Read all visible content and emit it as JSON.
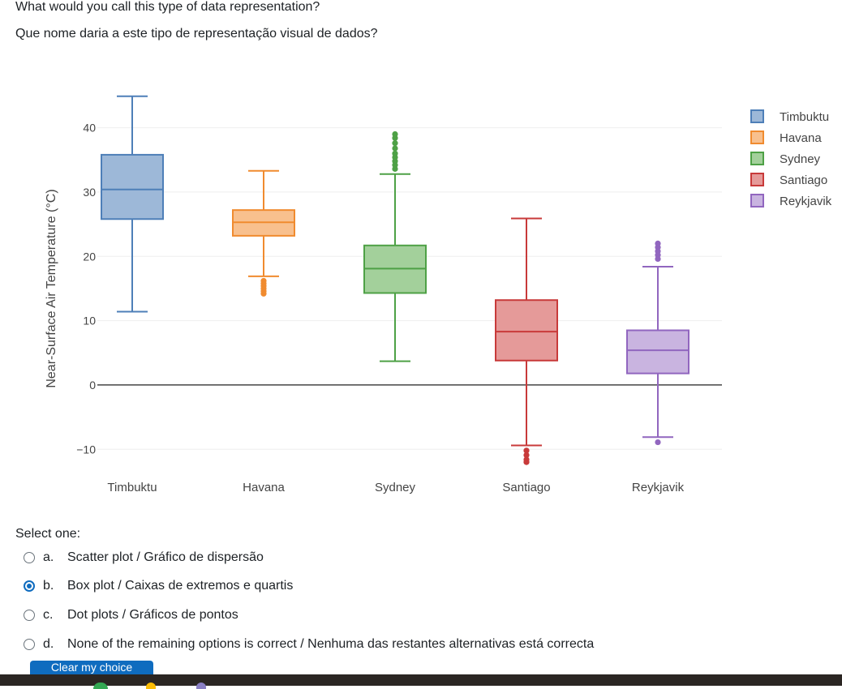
{
  "question": {
    "line_en": "What would you call this type of data representation?",
    "line_pt": "Que nome daria a este tipo de representação visual de dados?"
  },
  "chart_data": {
    "type": "box",
    "ylabel": "Near-Surface Air Temperature (°C)",
    "ylim": [
      -14,
      46
    ],
    "yticks": [
      -10,
      0,
      10,
      20,
      30,
      40
    ],
    "ytick_labels": [
      "−10",
      "0",
      "10",
      "20",
      "30",
      "40"
    ],
    "legend_position": "top-right",
    "categories": [
      "Timbuktu",
      "Havana",
      "Sydney",
      "Santiago",
      "Reykjavik"
    ],
    "series": [
      {
        "name": "Timbuktu",
        "color": "#4e7fb8",
        "fill": "#9db8d8",
        "min": 11.4,
        "q1": 25.8,
        "median": 30.4,
        "q3": 35.8,
        "max": 44.9,
        "outliers": []
      },
      {
        "name": "Havana",
        "color": "#f08b2f",
        "fill": "#f8c08e",
        "min": 16.9,
        "q1": 23.2,
        "median": 25.3,
        "q3": 27.2,
        "max": 33.3,
        "outliers": [
          14.2,
          14.6,
          15.0,
          15.4,
          15.8,
          16.2
        ]
      },
      {
        "name": "Sydney",
        "color": "#4ea146",
        "fill": "#a3d09b",
        "min": 3.7,
        "q1": 14.3,
        "median": 18.1,
        "q3": 21.7,
        "max": 32.8,
        "outliers": [
          33.6,
          34.2,
          34.8,
          35.4,
          36.0,
          36.8,
          37.6,
          38.4,
          39.0
        ]
      },
      {
        "name": "Santiago",
        "color": "#c83a3a",
        "fill": "#e59a99",
        "min": -9.4,
        "q1": 3.8,
        "median": 8.3,
        "q3": 13.2,
        "max": 25.9,
        "outliers": [
          -10.2,
          -10.9,
          -11.6,
          -12.0
        ]
      },
      {
        "name": "Reykjavik",
        "color": "#9166bf",
        "fill": "#c9b4e0",
        "min": -8.1,
        "q1": 1.8,
        "median": 5.4,
        "q3": 8.5,
        "max": 18.4,
        "outliers": [
          -8.9,
          19.6,
          20.2,
          20.8,
          21.4,
          22.0
        ]
      }
    ]
  },
  "form": {
    "select_label": "Select one:",
    "options": [
      {
        "letter": "a.",
        "text": "Scatter plot / Gráfico de dispersão",
        "checked": false
      },
      {
        "letter": "b.",
        "text": "Box plot / Caixas de extremos e quartis",
        "checked": true
      },
      {
        "letter": "c.",
        "text": "Dot plots / Gráficos de pontos",
        "checked": false
      },
      {
        "letter": "d.",
        "text": "None of the remaining options is correct / Nenhuma das restantes alternativas está correcta",
        "checked": false
      }
    ],
    "clear_label": "Clear my choice"
  }
}
